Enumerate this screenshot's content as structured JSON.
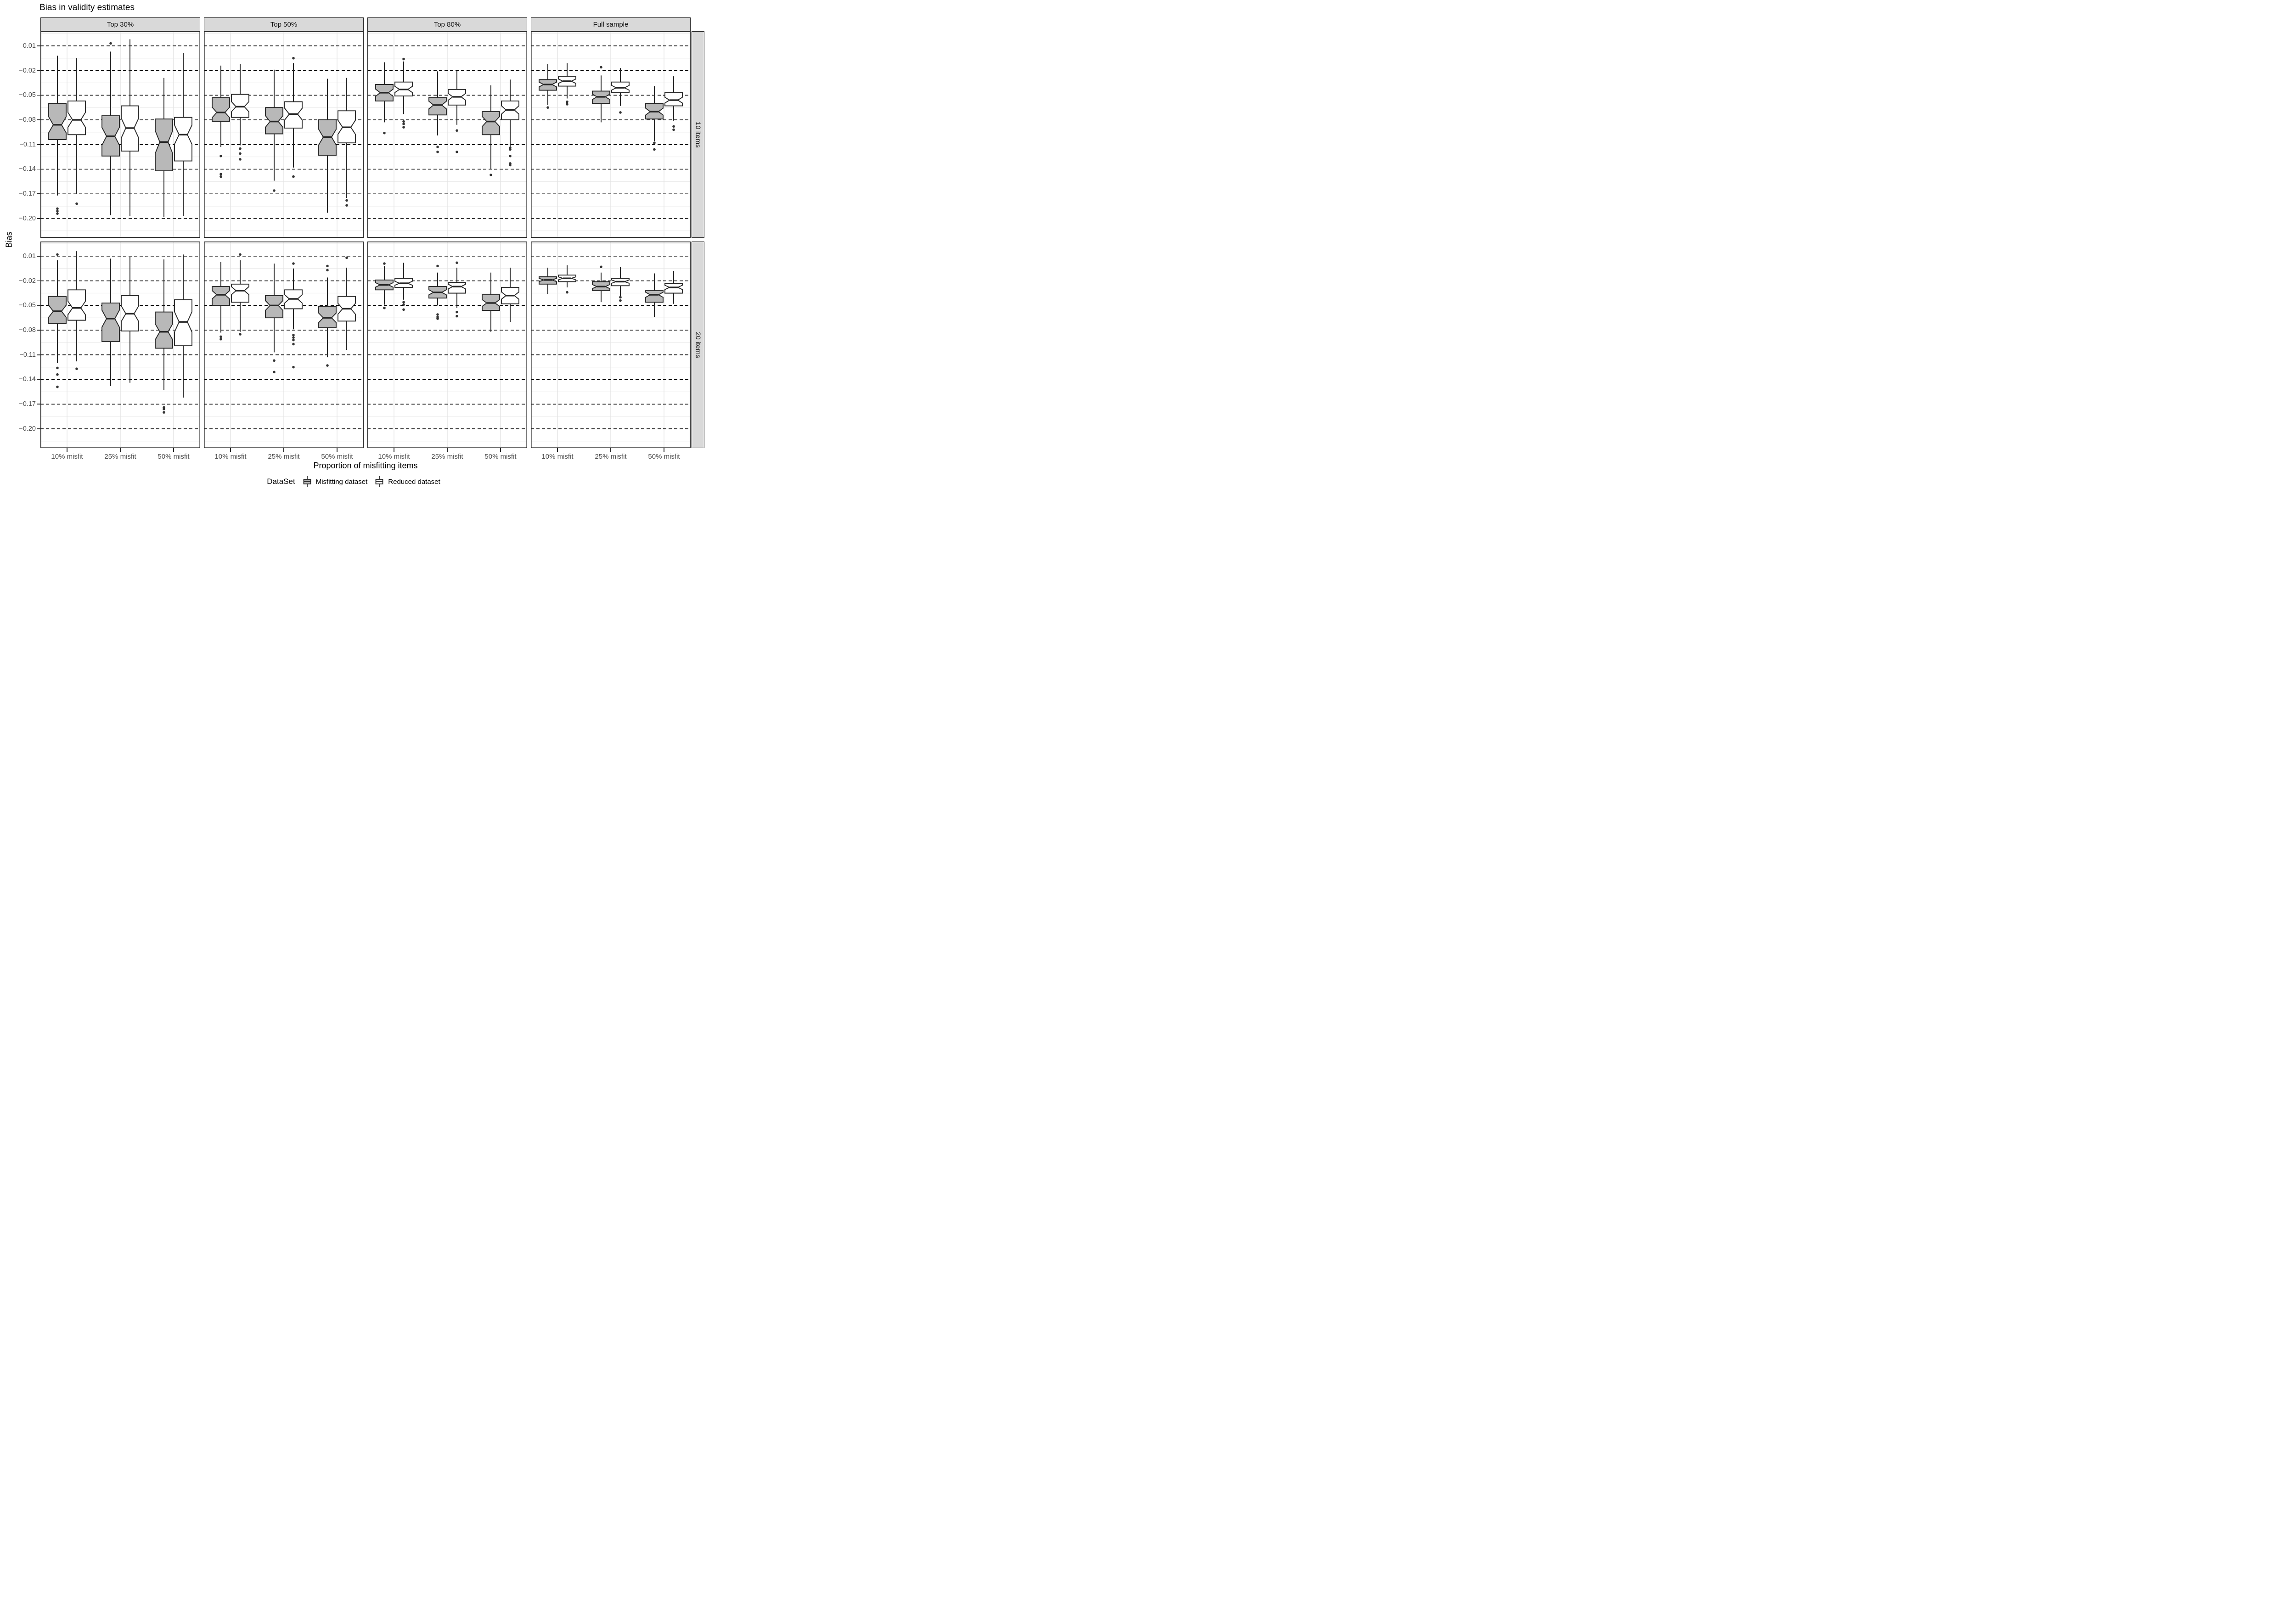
{
  "title": "Bias in validity estimates",
  "y_axis": {
    "label": "Bias",
    "tick_labels": [
      "0.01",
      "−0.02",
      "−0.05",
      "−0.08",
      "−0.11",
      "−0.14",
      "−0.17",
      "−0.20"
    ]
  },
  "x_axis": {
    "label": "Proportion of misfitting items",
    "categories": [
      "10% misfit",
      "25% misfit",
      "50% misfit"
    ]
  },
  "facets": {
    "columns": [
      "Top 30%",
      "Top 50%",
      "Top 80%",
      "Full sample"
    ],
    "rows": [
      "10 items",
      "20 items"
    ]
  },
  "legend": {
    "title": "DataSet",
    "items": [
      {
        "label": "Misfitting dataset",
        "fill": "#b8b8b8",
        "icon": "boxplot-key-icon"
      },
      {
        "label": "Reduced dataset",
        "fill": "#ffffff",
        "icon": "boxplot-key-icon"
      }
    ]
  },
  "colors": {
    "box_outline": "#262626",
    "gray_fill": "#b8b8b8",
    "white_fill": "#ffffff",
    "strip_bg": "#d9d9d9",
    "panel_border": "#262626",
    "major_grid": "#000000",
    "minor_grid": "#ececec",
    "cat_grid": "#e4e4e4",
    "tick_text": "#4d4d4d",
    "outlier": "#333333"
  },
  "chart_data": {
    "type": "boxplot",
    "title": "Bias in validity estimates",
    "xlabel": "Proportion of misfitting items",
    "ylabel": "Bias",
    "facet_columns": [
      "Top 30%",
      "Top 50%",
      "Top 80%",
      "Full sample"
    ],
    "facet_rows": [
      "10 items",
      "20 items"
    ],
    "categories": [
      "10% misfit",
      "25% misfit",
      "50% misfit"
    ],
    "series": [
      "Misfitting dataset",
      "Reduced dataset"
    ],
    "y_ticks": [
      0.01,
      -0.02,
      -0.05,
      -0.08,
      -0.11,
      -0.14,
      -0.17,
      -0.2
    ],
    "y_minor_ticks": [
      0.025,
      -0.005,
      -0.035,
      -0.065,
      -0.095,
      -0.125,
      -0.155,
      -0.185,
      -0.215
    ],
    "ylim": [
      -0.2235,
      0.0278
    ],
    "grid": {
      "major_style": "dashed-black",
      "minor_style": "solid-light"
    },
    "legend_position": "bottom",
    "panels": [
      {
        "facet_col": "Top 30%",
        "facet_row": "10 items",
        "boxes": [
          {
            "category": "10% misfit",
            "series": "Misfitting dataset",
            "whisker_low": -0.172,
            "q1": -0.104,
            "median": -0.086,
            "q3": -0.06,
            "whisker_high": -0.002,
            "outliers": [
              -0.188,
              -0.191,
              -0.194
            ]
          },
          {
            "category": "10% misfit",
            "series": "Reduced dataset",
            "whisker_low": -0.17,
            "q1": -0.098,
            "median": -0.08,
            "q3": -0.057,
            "whisker_high": -0.005,
            "outliers": [
              -0.182
            ]
          },
          {
            "category": "25% misfit",
            "series": "Misfitting dataset",
            "whisker_low": -0.196,
            "q1": -0.124,
            "median": -0.1,
            "q3": -0.075,
            "whisker_high": 0.003,
            "outliers": [
              0.013
            ]
          },
          {
            "category": "25% misfit",
            "series": "Reduced dataset",
            "whisker_low": -0.197,
            "q1": -0.118,
            "median": -0.09,
            "q3": -0.063,
            "whisker_high": 0.018,
            "outliers": []
          },
          {
            "category": "50% misfit",
            "series": "Misfitting dataset",
            "whisker_low": -0.198,
            "q1": -0.142,
            "median": -0.107,
            "q3": -0.079,
            "whisker_high": -0.029,
            "outliers": []
          },
          {
            "category": "50% misfit",
            "series": "Reduced dataset",
            "whisker_low": -0.197,
            "q1": -0.13,
            "median": -0.098,
            "q3": -0.077,
            "whisker_high": 0.001,
            "outliers": []
          }
        ]
      },
      {
        "facet_col": "Top 50%",
        "facet_row": "10 items",
        "boxes": [
          {
            "category": "10% misfit",
            "series": "Misfitting dataset",
            "whisker_low": -0.113,
            "q1": -0.082,
            "median": -0.071,
            "q3": -0.053,
            "whisker_high": -0.014,
            "outliers": [
              -0.124,
              -0.146,
              -0.149
            ]
          },
          {
            "category": "10% misfit",
            "series": "Reduced dataset",
            "whisker_low": -0.111,
            "q1": -0.077,
            "median": -0.064,
            "q3": -0.049,
            "whisker_high": -0.012,
            "outliers": [
              -0.115,
              -0.121,
              -0.128
            ]
          },
          {
            "category": "25% misfit",
            "series": "Misfitting dataset",
            "whisker_low": -0.154,
            "q1": -0.097,
            "median": -0.082,
            "q3": -0.065,
            "whisker_high": -0.019,
            "outliers": [
              -0.166
            ]
          },
          {
            "category": "25% misfit",
            "series": "Reduced dataset",
            "whisker_low": -0.138,
            "q1": -0.09,
            "median": -0.073,
            "q3": -0.058,
            "whisker_high": -0.011,
            "outliers": [
              -0.005,
              -0.149
            ]
          },
          {
            "category": "50% misfit",
            "series": "Misfitting dataset",
            "whisker_low": -0.193,
            "q1": -0.123,
            "median": -0.101,
            "q3": -0.08,
            "whisker_high": -0.03,
            "outliers": []
          },
          {
            "category": "50% misfit",
            "series": "Reduced dataset",
            "whisker_low": -0.175,
            "q1": -0.108,
            "median": -0.089,
            "q3": -0.069,
            "whisker_high": -0.029,
            "outliers": [
              -0.178,
              -0.184
            ]
          }
        ]
      },
      {
        "facet_col": "Top 80%",
        "facet_row": "10 items",
        "boxes": [
          {
            "category": "10% misfit",
            "series": "Misfitting dataset",
            "whisker_low": -0.083,
            "q1": -0.057,
            "median": -0.047,
            "q3": -0.037,
            "whisker_high": -0.01,
            "outliers": [
              -0.096
            ]
          },
          {
            "category": "10% misfit",
            "series": "Reduced dataset",
            "whisker_low": -0.073,
            "q1": -0.051,
            "median": -0.043,
            "q3": -0.034,
            "whisker_high": -0.009,
            "outliers": [
              -0.006,
              -0.082,
              -0.085,
              -0.089
            ]
          },
          {
            "category": "25% misfit",
            "series": "Misfitting dataset",
            "whisker_low": -0.099,
            "q1": -0.074,
            "median": -0.062,
            "q3": -0.053,
            "whisker_high": -0.021,
            "outliers": [
              -0.113,
              -0.119
            ]
          },
          {
            "category": "25% misfit",
            "series": "Reduced dataset",
            "whisker_low": -0.086,
            "q1": -0.062,
            "median": -0.052,
            "q3": -0.043,
            "whisker_high": -0.02,
            "outliers": [
              -0.093,
              -0.119
            ]
          },
          {
            "category": "50% misfit",
            "series": "Misfitting dataset",
            "whisker_low": -0.14,
            "q1": -0.098,
            "median": -0.082,
            "q3": -0.07,
            "whisker_high": -0.038,
            "outliers": [
              -0.147
            ]
          },
          {
            "category": "50% misfit",
            "series": "Reduced dataset",
            "whisker_low": -0.113,
            "q1": -0.08,
            "median": -0.068,
            "q3": -0.057,
            "whisker_high": -0.031,
            "outliers": [
              -0.114,
              -0.116,
              -0.124,
              -0.133,
              -0.135
            ]
          }
        ]
      },
      {
        "facet_col": "Full sample",
        "facet_row": "10 items",
        "boxes": [
          {
            "category": "10% misfit",
            "series": "Misfitting dataset",
            "whisker_low": -0.062,
            "q1": -0.044,
            "median": -0.037,
            "q3": -0.031,
            "whisker_high": -0.012,
            "outliers": [
              -0.065
            ]
          },
          {
            "category": "10% misfit",
            "series": "Reduced dataset",
            "whisker_low": -0.054,
            "q1": -0.039,
            "median": -0.033,
            "q3": -0.027,
            "whisker_high": -0.011,
            "outliers": [
              -0.058,
              -0.061
            ]
          },
          {
            "category": "25% misfit",
            "series": "Misfitting dataset",
            "whisker_low": -0.083,
            "q1": -0.06,
            "median": -0.052,
            "q3": -0.045,
            "whisker_high": -0.026,
            "outliers": [
              -0.016
            ]
          },
          {
            "category": "25% misfit",
            "series": "Reduced dataset",
            "whisker_low": -0.063,
            "q1": -0.047,
            "median": -0.041,
            "q3": -0.034,
            "whisker_high": -0.017,
            "outliers": [
              -0.071
            ]
          },
          {
            "category": "50% misfit",
            "series": "Misfitting dataset",
            "whisker_low": -0.106,
            "q1": -0.079,
            "median": -0.07,
            "q3": -0.06,
            "whisker_high": -0.039,
            "outliers": [
              -0.108,
              -0.116
            ]
          },
          {
            "category": "50% misfit",
            "series": "Reduced dataset",
            "whisker_low": -0.081,
            "q1": -0.063,
            "median": -0.056,
            "q3": -0.047,
            "whisker_high": -0.027,
            "outliers": [
              -0.088,
              -0.092
            ]
          }
        ]
      },
      {
        "facet_col": "Top 30%",
        "facet_row": "20 items",
        "boxes": [
          {
            "category": "10% misfit",
            "series": "Misfitting dataset",
            "whisker_low": -0.12,
            "q1": -0.072,
            "median": -0.057,
            "q3": -0.039,
            "whisker_high": 0.005,
            "outliers": [
              0.012,
              -0.126,
              -0.134,
              -0.149
            ]
          },
          {
            "category": "10% misfit",
            "series": "Reduced dataset",
            "whisker_low": -0.118,
            "q1": -0.068,
            "median": -0.053,
            "q3": -0.031,
            "whisker_high": 0.016,
            "outliers": [
              -0.127
            ]
          },
          {
            "category": "25% misfit",
            "series": "Misfitting dataset",
            "whisker_low": -0.148,
            "q1": -0.094,
            "median": -0.066,
            "q3": -0.047,
            "whisker_high": 0.007,
            "outliers": []
          },
          {
            "category": "25% misfit",
            "series": "Reduced dataset",
            "whisker_low": -0.144,
            "q1": -0.081,
            "median": -0.06,
            "q3": -0.038,
            "whisker_high": 0.009,
            "outliers": []
          },
          {
            "category": "50% misfit",
            "series": "Misfitting dataset",
            "whisker_low": -0.153,
            "q1": -0.102,
            "median": -0.082,
            "q3": -0.058,
            "whisker_high": 0.006,
            "outliers": [
              -0.174,
              -0.176,
              -0.18
            ]
          },
          {
            "category": "50% misfit",
            "series": "Reduced dataset",
            "whisker_low": -0.162,
            "q1": -0.099,
            "median": -0.07,
            "q3": -0.043,
            "whisker_high": 0.012,
            "outliers": []
          }
        ]
      },
      {
        "facet_col": "Top 50%",
        "facet_row": "20 items",
        "boxes": [
          {
            "category": "10% misfit",
            "series": "Misfitting dataset",
            "whisker_low": -0.083,
            "q1": -0.05,
            "median": -0.037,
            "q3": -0.027,
            "whisker_high": 0.003,
            "outliers": [
              -0.088,
              -0.091
            ]
          },
          {
            "category": "10% misfit",
            "series": "Reduced dataset",
            "whisker_low": -0.082,
            "q1": -0.046,
            "median": -0.032,
            "q3": -0.024,
            "whisker_high": 0.005,
            "outliers": [
              0.012,
              -0.085
            ]
          },
          {
            "category": "25% misfit",
            "series": "Misfitting dataset",
            "whisker_low": -0.107,
            "q1": -0.065,
            "median": -0.05,
            "q3": -0.038,
            "whisker_high": 0.001,
            "outliers": [
              -0.117,
              -0.131
            ]
          },
          {
            "category": "25% misfit",
            "series": "Reduced dataset",
            "whisker_low": -0.079,
            "q1": -0.054,
            "median": -0.042,
            "q3": -0.031,
            "whisker_high": -0.005,
            "outliers": [
              0.001,
              -0.086,
              -0.089,
              -0.092,
              -0.097,
              -0.125
            ]
          },
          {
            "category": "50% misfit",
            "series": "Misfitting dataset",
            "whisker_low": -0.113,
            "q1": -0.077,
            "median": -0.065,
            "q3": -0.051,
            "whisker_high": -0.016,
            "outliers": [
              -0.002,
              -0.007,
              -0.123
            ]
          },
          {
            "category": "50% misfit",
            "series": "Reduced dataset",
            "whisker_low": -0.104,
            "q1": -0.069,
            "median": -0.054,
            "q3": -0.039,
            "whisker_high": -0.004,
            "outliers": [
              0.008
            ]
          }
        ]
      },
      {
        "facet_col": "Top 80%",
        "facet_row": "20 items",
        "boxes": [
          {
            "category": "10% misfit",
            "series": "Misfitting dataset",
            "whisker_low": -0.049,
            "q1": -0.031,
            "median": -0.025,
            "q3": -0.019,
            "whisker_high": -0.002,
            "outliers": [
              0.001,
              -0.053
            ]
          },
          {
            "category": "10% misfit",
            "series": "Reduced dataset",
            "whisker_low": -0.043,
            "q1": -0.028,
            "median": -0.023,
            "q3": -0.017,
            "whisker_high": 0.002,
            "outliers": [
              -0.046,
              -0.049,
              -0.055
            ]
          },
          {
            "category": "25% misfit",
            "series": "Misfitting dataset",
            "whisker_low": -0.05,
            "q1": -0.041,
            "median": -0.034,
            "q3": -0.027,
            "whisker_high": -0.01,
            "outliers": [
              -0.002,
              -0.061,
              -0.064,
              -0.066
            ]
          },
          {
            "category": "25% misfit",
            "series": "Reduced dataset",
            "whisker_low": -0.053,
            "q1": -0.035,
            "median": -0.027,
            "q3": -0.022,
            "whisker_high": -0.004,
            "outliers": [
              0.002,
              -0.058,
              -0.063
            ]
          },
          {
            "category": "50% misfit",
            "series": "Misfitting dataset",
            "whisker_low": -0.082,
            "q1": -0.056,
            "median": -0.047,
            "q3": -0.037,
            "whisker_high": -0.01,
            "outliers": []
          },
          {
            "category": "50% misfit",
            "series": "Reduced dataset",
            "whisker_low": -0.07,
            "q1": -0.048,
            "median": -0.038,
            "q3": -0.028,
            "whisker_high": -0.004,
            "outliers": []
          }
        ]
      },
      {
        "facet_col": "Full sample",
        "facet_row": "20 items",
        "boxes": [
          {
            "category": "10% misfit",
            "series": "Misfitting dataset",
            "whisker_low": -0.036,
            "q1": -0.024,
            "median": -0.019,
            "q3": -0.015,
            "whisker_high": -0.004,
            "outliers": []
          },
          {
            "category": "10% misfit",
            "series": "Reduced dataset",
            "whisker_low": -0.028,
            "q1": -0.021,
            "median": -0.017,
            "q3": -0.013,
            "whisker_high": -0.001,
            "outliers": [
              -0.034
            ]
          },
          {
            "category": "25% misfit",
            "series": "Misfitting dataset",
            "whisker_low": -0.046,
            "q1": -0.032,
            "median": -0.027,
            "q3": -0.021,
            "whisker_high": -0.01,
            "outliers": [
              -0.003
            ]
          },
          {
            "category": "25% misfit",
            "series": "Reduced dataset",
            "whisker_low": -0.041,
            "q1": -0.026,
            "median": -0.021,
            "q3": -0.017,
            "whisker_high": -0.003,
            "outliers": [
              -0.04,
              -0.044
            ]
          },
          {
            "category": "50% misfit",
            "series": "Misfitting dataset",
            "whisker_low": -0.064,
            "q1": -0.046,
            "median": -0.037,
            "q3": -0.032,
            "whisker_high": -0.011,
            "outliers": []
          },
          {
            "category": "50% misfit",
            "series": "Reduced dataset",
            "whisker_low": -0.048,
            "q1": -0.035,
            "median": -0.028,
            "q3": -0.023,
            "whisker_high": -0.008,
            "outliers": []
          }
        ]
      }
    ]
  }
}
